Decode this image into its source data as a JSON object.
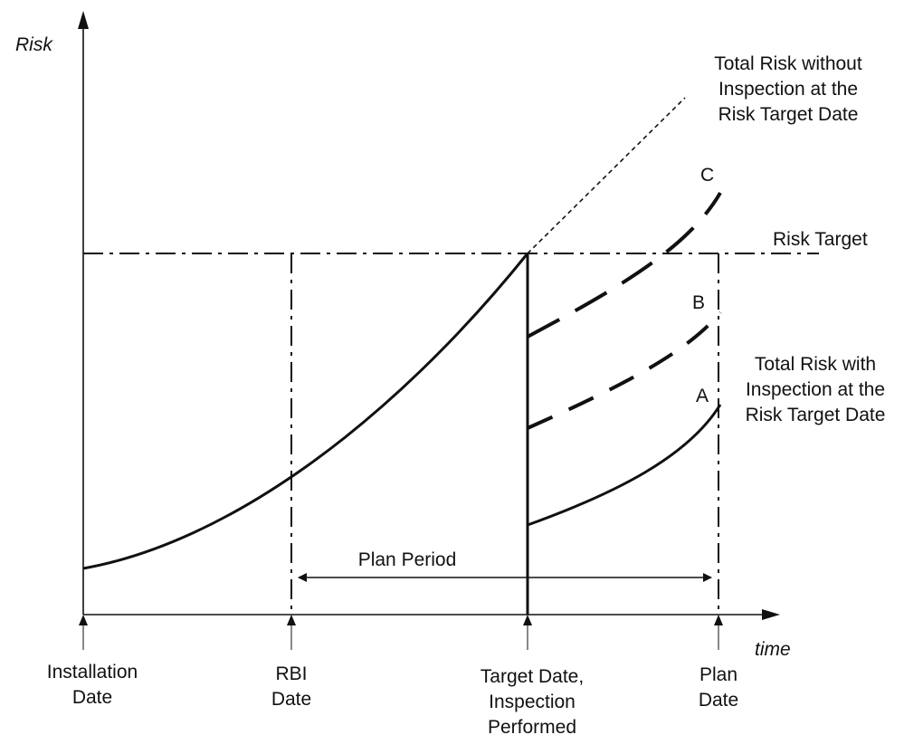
{
  "axes": {
    "y_label": "Risk",
    "x_label": "time"
  },
  "labels": {
    "total_risk_without": [
      "Total Risk without",
      "Inspection at the",
      "Risk Target Date"
    ],
    "risk_target": "Risk Target",
    "curve_c": "C",
    "curve_b": "B",
    "curve_a": "A",
    "total_risk_with": [
      "Total Risk with",
      "Inspection at the",
      "Risk Target Date"
    ],
    "plan_period": "Plan Period"
  },
  "x_markers": {
    "installation": [
      "Installation",
      "Date"
    ],
    "rbi": [
      "RBI",
      "Date"
    ],
    "target": [
      "Target Date,",
      "Inspection",
      "Performed"
    ],
    "plan": [
      "Plan",
      "Date"
    ]
  }
}
